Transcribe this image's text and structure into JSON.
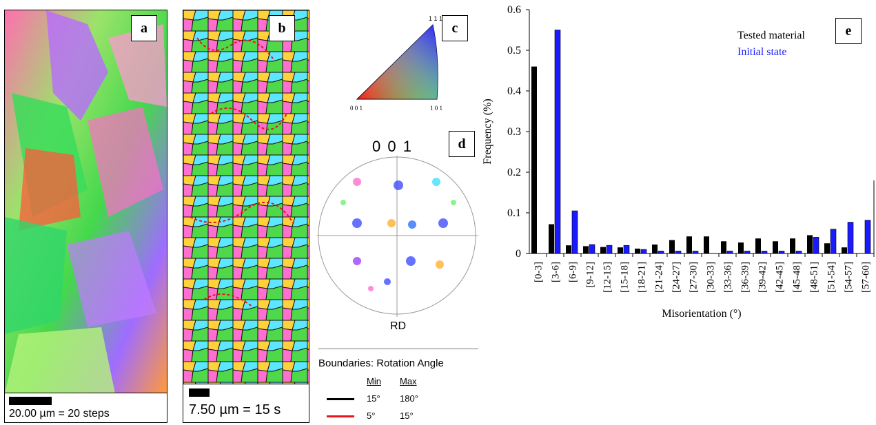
{
  "panels": {
    "a": {
      "label": "a",
      "scale_text": "20.00 µm = 20 steps"
    },
    "b": {
      "label": "b",
      "scale_text": "7.50 µm = 15 s"
    },
    "c": {
      "label": "c",
      "corner_111": "1 1 1",
      "corner_001": "0 0 1",
      "corner_101": "1 0 1"
    },
    "d": {
      "label": "d",
      "pole_title": "0 0 1",
      "rd_label": "RD"
    },
    "e": {
      "label": "e"
    }
  },
  "legend_boundaries": {
    "title": "Boundaries: Rotation Angle",
    "min_header": "Min",
    "max_header": "Max",
    "rows": [
      {
        "min": "15°",
        "max": "180°",
        "color": "#000000"
      },
      {
        "min": "5°",
        "max": "15°",
        "color": "#e8141b"
      }
    ]
  },
  "chart_data": {
    "type": "bar",
    "title": "",
    "xlabel": "Misorientation (°)",
    "ylabel": "Frequency (%)",
    "ylim": [
      0,
      0.6
    ],
    "yticks": [
      "0",
      "0.1",
      "0.2",
      "0.3",
      "0.4",
      "0.5",
      "0.6"
    ],
    "legend_position": "top-right",
    "categories": [
      "[0-3]",
      "[3-6]",
      "[6-9]",
      "[9-12]",
      "[12-15]",
      "[15-18]",
      "[18-21]",
      "[21-24]",
      "[24-27]",
      "[27-30]",
      "[30-33]",
      "[33-36]",
      "[36-39]",
      "[39-42]",
      "[42-45]",
      "[45-48]",
      "[48-51]",
      "[51-54]",
      "[54-57]",
      "[57-60]"
    ],
    "series": [
      {
        "name": "Tested material",
        "color": "#000000",
        "values": [
          0.46,
          0.072,
          0.02,
          0.018,
          0.016,
          0.015,
          0.012,
          0.022,
          0.033,
          0.042,
          0.042,
          0.03,
          0.027,
          0.037,
          0.03,
          0.037,
          0.045,
          0.025,
          0.015,
          0.0
        ]
      },
      {
        "name": "Initial state",
        "color": "#1a1aff",
        "values": [
          0.0,
          0.55,
          0.105,
          0.022,
          0.02,
          0.02,
          0.01,
          0.006,
          0.006,
          0.006,
          0.0,
          0.006,
          0.006,
          0.006,
          0.006,
          0.006,
          0.04,
          0.06,
          0.077,
          0.082
        ]
      }
    ],
    "legend_colors": {
      "tested": "#000000",
      "initial": "#1a1aff"
    }
  }
}
